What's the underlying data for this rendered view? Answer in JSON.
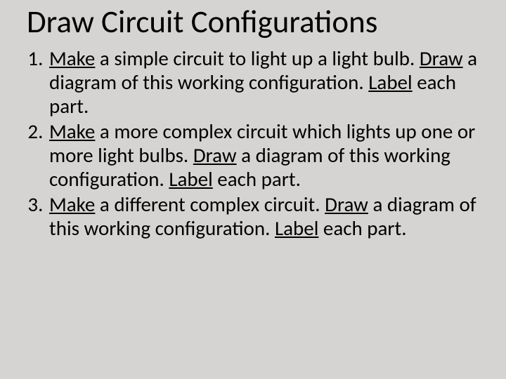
{
  "background_color": "#d6d4d3",
  "text_color": "#000000",
  "font_family": "Calibri",
  "title": {
    "text": "Draw Circuit Configurations",
    "fontsize": 45,
    "weight": 400
  },
  "list": {
    "type": "ordered",
    "fontsize": 29,
    "line_height": 1.17,
    "items": [
      {
        "segments": [
          {
            "t": "Make",
            "u": true
          },
          {
            "t": " a simple circuit to light up a light bulb. "
          },
          {
            "t": "Draw",
            "u": true
          },
          {
            "t": " a diagram of this working configuration. "
          },
          {
            "t": "Label",
            "u": true
          },
          {
            "t": " each part."
          }
        ]
      },
      {
        "segments": [
          {
            "t": "Make",
            "u": true
          },
          {
            "t": " a more complex circuit which lights up one or more light bulbs. "
          },
          {
            "t": "Draw",
            "u": true
          },
          {
            "t": " a diagram of this working configuration. "
          },
          {
            "t": "Label",
            "u": true
          },
          {
            "t": " each part."
          }
        ]
      },
      {
        "segments": [
          {
            "t": "Make",
            "u": true
          },
          {
            "t": " a different complex circuit. "
          },
          {
            "t": "Draw",
            "u": true
          },
          {
            "t": " a diagram of this working configuration. "
          },
          {
            "t": "Label",
            "u": true
          },
          {
            "t": " each part."
          }
        ]
      }
    ]
  }
}
